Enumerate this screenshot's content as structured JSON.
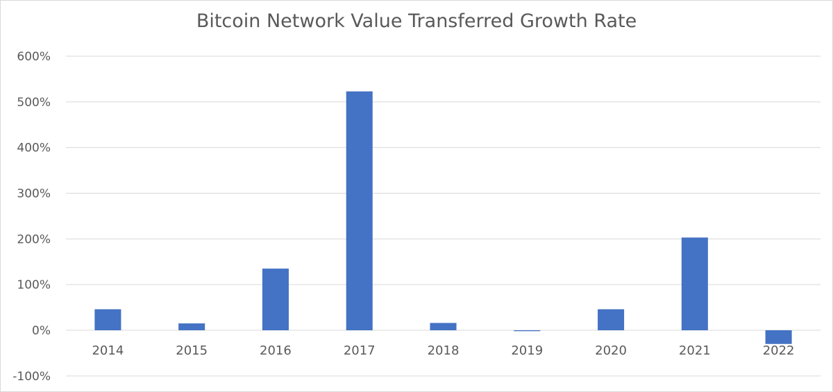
{
  "chart_data": {
    "type": "bar",
    "title": "Bitcoin Network Value Transferred Growth Rate",
    "xlabel": "",
    "ylabel": "",
    "categories": [
      "2014",
      "2015",
      "2016",
      "2017",
      "2018",
      "2019",
      "2020",
      "2021",
      "2022"
    ],
    "series": [
      {
        "values": [
          46,
          15,
          135,
          523,
          16,
          -2,
          46,
          203,
          -30
        ]
      }
    ],
    "ylim": [
      -100,
      600
    ],
    "yticks": [
      600,
      500,
      400,
      300,
      200,
      100,
      0,
      -100
    ],
    "ytick_labels": [
      "600%",
      "500%",
      "400%",
      "300%",
      "200%",
      "100%",
      "0%",
      "-100%"
    ],
    "grid": true,
    "legend": "none",
    "bar_color": "#4472c4",
    "grid_color": "#d9d9d9"
  }
}
